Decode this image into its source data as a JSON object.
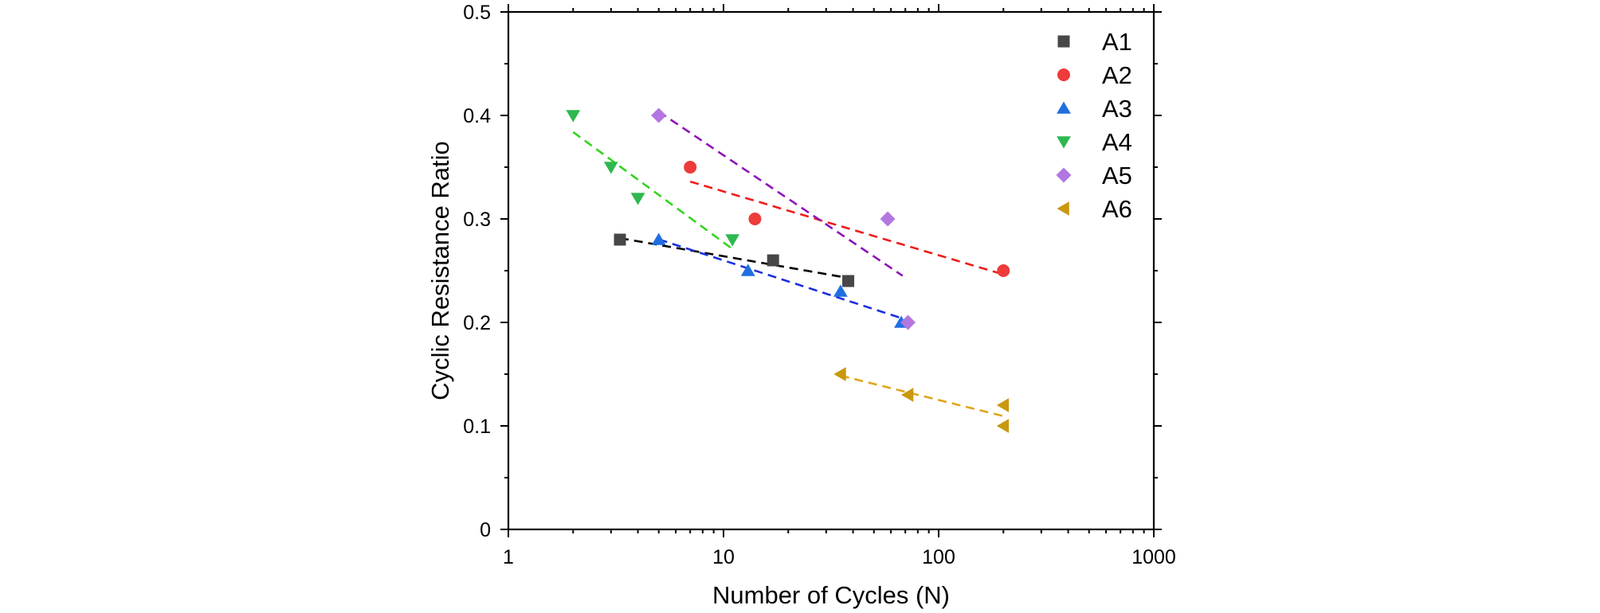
{
  "chart_data": {
    "type": "scatter",
    "title": "",
    "xlabel": "Number of Cycles (N)",
    "ylabel": "Cyclic Resistance Ratio",
    "xscale": "log",
    "xlim": [
      1,
      1000
    ],
    "ylim": [
      0,
      0.5
    ],
    "xticks": [
      1,
      10,
      100,
      1000
    ],
    "xtick_labels": [
      "1",
      "10",
      "100",
      "1000"
    ],
    "yticks": [
      0,
      0.1,
      0.2,
      0.3,
      0.4,
      0.5
    ],
    "ytick_labels": [
      "0",
      "0.1",
      "0.2",
      "0.3",
      "0.4",
      "0.5"
    ],
    "legend_position": "top-right",
    "series": [
      {
        "name": "A1",
        "marker": "square",
        "color": "#474747",
        "line_color": "#000000",
        "x": [
          3.3,
          17,
          38
        ],
        "y": [
          0.28,
          0.26,
          0.24
        ],
        "fit_x": [
          3.3,
          38
        ]
      },
      {
        "name": "A2",
        "marker": "circle",
        "color": "#ee3b3b",
        "line_color": "#ee1c1c",
        "x": [
          7,
          14,
          200
        ],
        "y": [
          0.35,
          0.3,
          0.25
        ],
        "fit_x": [
          7,
          200
        ]
      },
      {
        "name": "A3",
        "marker": "triangle-up",
        "color": "#1f6fe0",
        "line_color": "#1a2fe0",
        "x": [
          5,
          13,
          35,
          67
        ],
        "y": [
          0.28,
          0.25,
          0.23,
          0.2
        ],
        "fit_x": [
          5,
          67
        ]
      },
      {
        "name": "A4",
        "marker": "triangle-down",
        "color": "#2eb84f",
        "line_color": "#33d41f",
        "x": [
          2,
          3,
          4,
          11
        ],
        "y": [
          0.4,
          0.35,
          0.32,
          0.28
        ],
        "fit_x": [
          2,
          11
        ]
      },
      {
        "name": "A5",
        "marker": "diamond",
        "color": "#b277e0",
        "line_color": "#8e12b8",
        "x": [
          5,
          58,
          72
        ],
        "y": [
          0.4,
          0.3,
          0.2
        ],
        "fit_x": [
          5,
          68
        ]
      },
      {
        "name": "A6",
        "marker": "triangle-left",
        "color": "#c9980f",
        "line_color": "#e0a51a",
        "x": [
          35,
          72,
          200,
          200
        ],
        "y": [
          0.15,
          0.13,
          0.12,
          0.1
        ],
        "fit_x": [
          35,
          200
        ]
      }
    ]
  }
}
